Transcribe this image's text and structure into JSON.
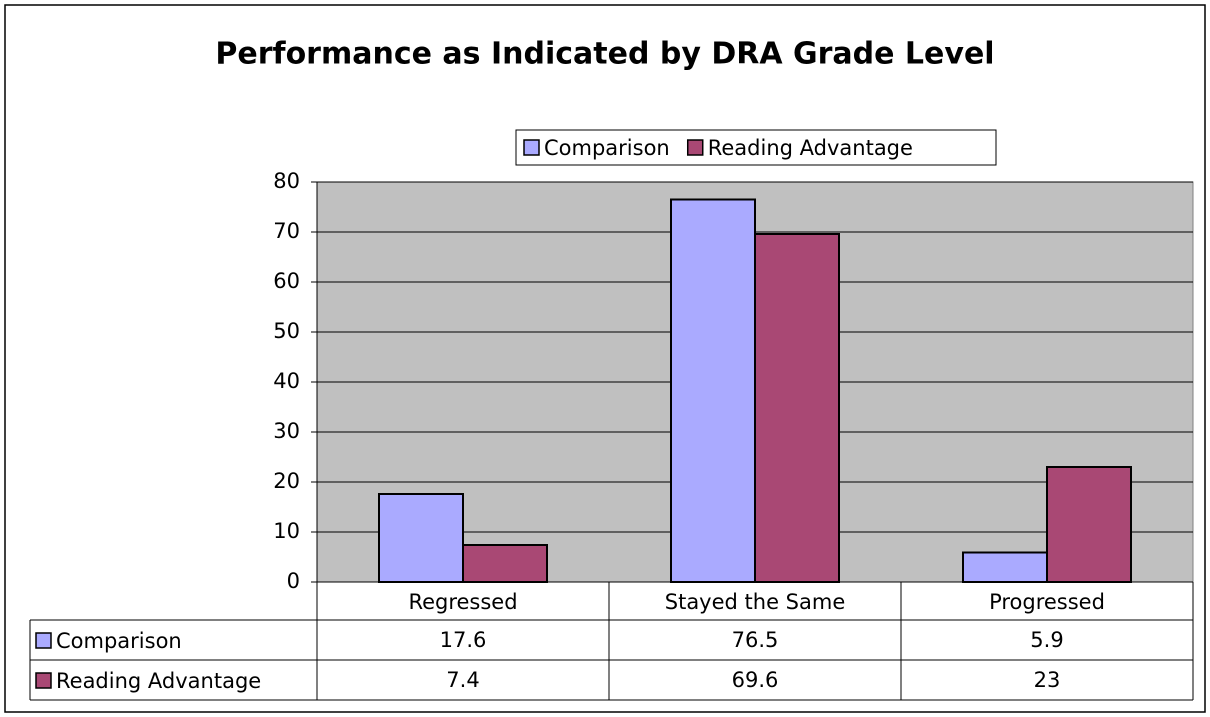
{
  "chart_data": {
    "type": "bar",
    "title": "Performance as Indicated by DRA Grade Level",
    "categories": [
      "Regressed",
      "Stayed the Same",
      "Progressed"
    ],
    "series": [
      {
        "name": "Comparison",
        "color": "#aaaaff",
        "values": [
          17.6,
          76.5,
          5.9
        ]
      },
      {
        "name": "Reading Advantage",
        "color": "#a94874",
        "values": [
          7.4,
          69.6,
          23
        ]
      }
    ],
    "ylim": [
      0,
      80
    ],
    "yticks": [
      0,
      10,
      20,
      30,
      40,
      50,
      60,
      70,
      80
    ],
    "grid": true,
    "legend": "top"
  }
}
